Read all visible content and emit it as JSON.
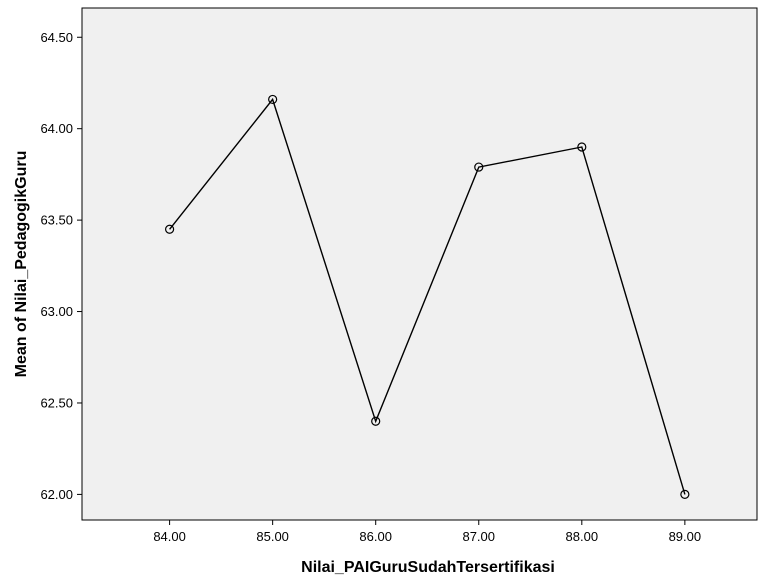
{
  "chart_data": {
    "type": "line",
    "xlabel": "Nilai_PAIGuruSudahTersertifikasi",
    "ylabel": "Mean of Nilai_PedagogikGuru",
    "x": [
      "84.00",
      "85.00",
      "86.00",
      "87.00",
      "88.00",
      "89.00"
    ],
    "series": [
      {
        "values": [
          63.45,
          64.16,
          62.4,
          63.79,
          63.9,
          62.0
        ]
      }
    ],
    "x_ticks": [
      "84.00",
      "85.00",
      "86.00",
      "87.00",
      "88.00",
      "89.00"
    ],
    "y_ticks": [
      "62.00",
      "62.50",
      "63.00",
      "63.50",
      "64.00",
      "64.50"
    ],
    "xlim": [
      83.15,
      89.7
    ],
    "ylim": [
      61.86,
      64.66
    ],
    "grid": false,
    "legend": "none",
    "colors": {
      "background": "#f0f0f0",
      "line": "#000000",
      "marker": "#000000"
    }
  }
}
